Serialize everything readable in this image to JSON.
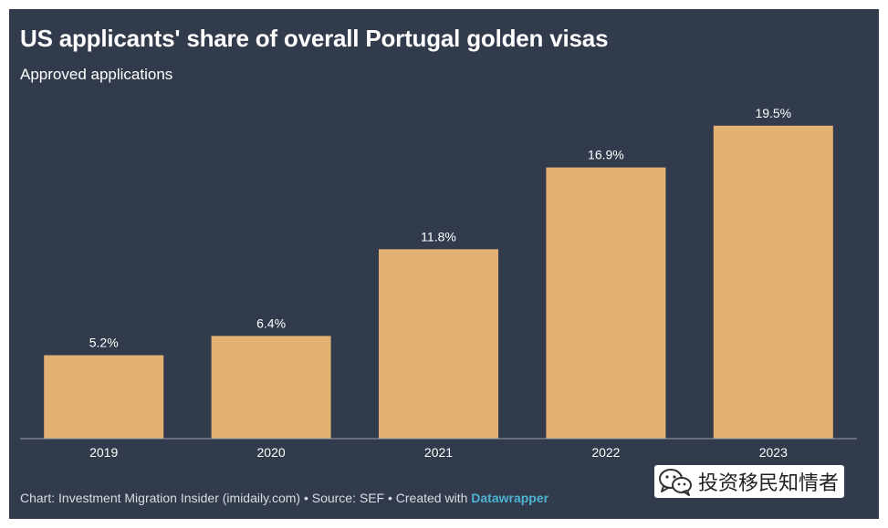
{
  "chart_data": {
    "type": "bar",
    "title": "US applicants' share of overall Portugal golden visas",
    "subtitle": "Approved applications",
    "categories": [
      "2019",
      "2020",
      "2021",
      "2022",
      "2023"
    ],
    "values": [
      5.2,
      6.4,
      11.8,
      16.9,
      19.5
    ],
    "value_labels": [
      "5.2%",
      "6.4%",
      "11.8%",
      "16.9%",
      "19.5%"
    ],
    "unit": "%",
    "ylim": [
      0,
      20
    ],
    "grid": false,
    "bar_color": "#e3b273",
    "background_color": "#323b4c"
  },
  "footer": {
    "text": "Chart: Investment Migration Insider (imidaily.com) • Source: SEF • Created with ",
    "link": "Datawrapper"
  },
  "watermark": {
    "text": "投资移民知情者",
    "icon": "wechat-icon"
  }
}
